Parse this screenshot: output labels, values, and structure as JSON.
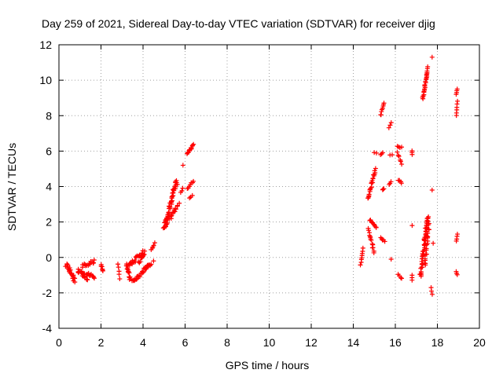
{
  "chart_data": {
    "type": "scatter",
    "title": "Day 259 of 2021, Sidereal Day-to-day VTEC variation (SDTVAR) for receiver djig",
    "xlabel": "GPS time / hours",
    "ylabel": "SDTVAR / TECUs",
    "xlim": [
      0,
      20
    ],
    "ylim": [
      -4,
      12
    ],
    "x_ticks": [
      0,
      2,
      4,
      6,
      8,
      10,
      12,
      14,
      16,
      18,
      20
    ],
    "y_ticks": [
      -4,
      -2,
      0,
      2,
      4,
      6,
      8,
      10,
      12
    ],
    "grid": true,
    "marker": "+",
    "color": "#ff0000",
    "series": [
      {
        "name": "SDTVAR",
        "segments": [
          {
            "x0": 0.35,
            "y0": -0.4,
            "x1": 0.75,
            "y1": -1.3,
            "n": 24,
            "jitter": 0.25
          },
          {
            "x0": 0.9,
            "y0": -0.7,
            "x1": 1.35,
            "y1": -1.2,
            "n": 22,
            "jitter": 0.25
          },
          {
            "x0": 1.1,
            "y0": -0.5,
            "x1": 1.7,
            "y1": -0.2,
            "n": 14,
            "jitter": 0.2
          },
          {
            "x0": 1.3,
            "y0": -0.9,
            "x1": 1.7,
            "y1": -1.1,
            "n": 10,
            "jitter": 0.15
          },
          {
            "x0": 2.0,
            "y0": -0.4,
            "x1": 2.1,
            "y1": -0.8,
            "n": 6,
            "jitter": 0.1
          },
          {
            "x0": 2.8,
            "y0": -0.4,
            "x1": 2.9,
            "y1": -1.2,
            "n": 5,
            "jitter": 0.1
          },
          {
            "x0": 3.2,
            "y0": -0.4,
            "x1": 3.4,
            "y1": -1.3,
            "n": 14,
            "jitter": 0.2
          },
          {
            "x0": 3.3,
            "y0": -0.5,
            "x1": 4.0,
            "y1": 0.3,
            "n": 26,
            "jitter": 0.2
          },
          {
            "x0": 3.5,
            "y0": -1.4,
            "x1": 4.3,
            "y1": -0.4,
            "n": 28,
            "jitter": 0.2
          },
          {
            "x0": 3.8,
            "y0": -0.3,
            "x1": 4.1,
            "y1": 0.3,
            "n": 10,
            "jitter": 0.15
          },
          {
            "x0": 4.1,
            "y0": -0.6,
            "x1": 4.4,
            "y1": -0.4,
            "n": 6,
            "jitter": 0.15
          },
          {
            "x0": 4.4,
            "y0": 0.4,
            "x1": 4.55,
            "y1": 0.8,
            "n": 5,
            "jitter": 0.1
          },
          {
            "x0": 4.5,
            "y0": -0.2,
            "x1": 4.55,
            "y1": -0.2,
            "n": 1,
            "jitter": 0
          },
          {
            "x0": 5.0,
            "y0": 1.6,
            "x1": 5.6,
            "y1": 4.3,
            "n": 55,
            "jitter": 0.3
          },
          {
            "x0": 5.1,
            "y0": 1.9,
            "x1": 5.7,
            "y1": 3.0,
            "n": 18,
            "jitter": 0.2
          },
          {
            "x0": 5.8,
            "y0": 3.7,
            "x1": 5.9,
            "y1": 3.9,
            "n": 3,
            "jitter": 0.1
          },
          {
            "x0": 5.9,
            "y0": 5.2,
            "x1": 5.9,
            "y1": 5.2,
            "n": 1,
            "jitter": 0
          },
          {
            "x0": 6.1,
            "y0": 3.9,
            "x1": 6.4,
            "y1": 4.3,
            "n": 7,
            "jitter": 0.1
          },
          {
            "x0": 6.1,
            "y0": 5.8,
            "x1": 6.4,
            "y1": 6.4,
            "n": 12,
            "jitter": 0.15
          },
          {
            "x0": 6.2,
            "y0": 3.4,
            "x1": 6.35,
            "y1": 3.5,
            "n": 3,
            "jitter": 0.1
          },
          {
            "x0": 14.35,
            "y0": -0.4,
            "x1": 14.45,
            "y1": 0.5,
            "n": 8,
            "jitter": 0.1
          },
          {
            "x0": 14.7,
            "y0": 3.3,
            "x1": 15.05,
            "y1": 5.0,
            "n": 22,
            "jitter": 0.15
          },
          {
            "x0": 14.7,
            "y0": 1.6,
            "x1": 15.0,
            "y1": 0.3,
            "n": 14,
            "jitter": 0.15
          },
          {
            "x0": 14.8,
            "y0": 2.1,
            "x1": 15.1,
            "y1": 1.7,
            "n": 10,
            "jitter": 0.12
          },
          {
            "x0": 15.0,
            "y0": 5.9,
            "x1": 15.1,
            "y1": 5.9,
            "n": 2,
            "jitter": 0.05
          },
          {
            "x0": 15.3,
            "y0": 8.0,
            "x1": 15.45,
            "y1": 8.7,
            "n": 8,
            "jitter": 0.1
          },
          {
            "x0": 15.3,
            "y0": 5.8,
            "x1": 15.4,
            "y1": 5.9,
            "n": 3,
            "jitter": 0.05
          },
          {
            "x0": 15.4,
            "y0": 3.8,
            "x1": 15.45,
            "y1": 3.9,
            "n": 3,
            "jitter": 0.05
          },
          {
            "x0": 15.3,
            "y0": 1.1,
            "x1": 15.5,
            "y1": 0.9,
            "n": 5,
            "jitter": 0.1
          },
          {
            "x0": 15.7,
            "y0": 7.3,
            "x1": 15.8,
            "y1": 7.6,
            "n": 3,
            "jitter": 0.05
          },
          {
            "x0": 15.7,
            "y0": 4.1,
            "x1": 15.8,
            "y1": 4.3,
            "n": 3,
            "jitter": 0.05
          },
          {
            "x0": 15.75,
            "y0": 5.8,
            "x1": 15.85,
            "y1": 5.8,
            "n": 2,
            "jitter": 0.05
          },
          {
            "x0": 15.8,
            "y0": -0.1,
            "x1": 15.8,
            "y1": -0.1,
            "n": 1,
            "jitter": 0
          },
          {
            "x0": 16.1,
            "y0": 6.3,
            "x1": 16.3,
            "y1": 6.2,
            "n": 4,
            "jitter": 0.1
          },
          {
            "x0": 16.1,
            "y0": 5.9,
            "x1": 16.3,
            "y1": 5.3,
            "n": 6,
            "jitter": 0.1
          },
          {
            "x0": 16.15,
            "y0": 4.4,
            "x1": 16.3,
            "y1": 4.2,
            "n": 4,
            "jitter": 0.1
          },
          {
            "x0": 16.15,
            "y0": -1.0,
            "x1": 16.3,
            "y1": -1.2,
            "n": 4,
            "jitter": 0.1
          },
          {
            "x0": 16.8,
            "y0": 5.8,
            "x1": 16.8,
            "y1": 6.0,
            "n": 3,
            "jitter": 0.05
          },
          {
            "x0": 16.8,
            "y0": 1.8,
            "x1": 16.8,
            "y1": 1.8,
            "n": 1,
            "jitter": 0
          },
          {
            "x0": 16.8,
            "y0": -1.0,
            "x1": 16.8,
            "y1": -1.3,
            "n": 3,
            "jitter": 0.05
          },
          {
            "x0": 17.3,
            "y0": 8.9,
            "x1": 17.55,
            "y1": 10.7,
            "n": 24,
            "jitter": 0.12
          },
          {
            "x0": 17.2,
            "y0": -1.0,
            "x1": 17.55,
            "y1": 2.3,
            "n": 60,
            "jitter": 0.3
          },
          {
            "x0": 17.4,
            "y0": -0.5,
            "x1": 17.6,
            "y1": 1.9,
            "n": 20,
            "jitter": 0.2
          },
          {
            "x0": 17.75,
            "y0": 3.8,
            "x1": 17.75,
            "y1": 3.8,
            "n": 1,
            "jitter": 0
          },
          {
            "x0": 17.75,
            "y0": 11.3,
            "x1": 17.75,
            "y1": 11.3,
            "n": 1,
            "jitter": 0
          },
          {
            "x0": 17.7,
            "y0": -1.7,
            "x1": 17.75,
            "y1": -2.1,
            "n": 3,
            "jitter": 0.05
          },
          {
            "x0": 17.8,
            "y0": 0.8,
            "x1": 17.8,
            "y1": 0.8,
            "n": 1,
            "jitter": 0
          },
          {
            "x0": 18.9,
            "y0": 9.2,
            "x1": 18.95,
            "y1": 9.5,
            "n": 4,
            "jitter": 0.05
          },
          {
            "x0": 18.9,
            "y0": 8.0,
            "x1": 18.95,
            "y1": 8.8,
            "n": 6,
            "jitter": 0.05
          },
          {
            "x0": 18.9,
            "y0": 0.9,
            "x1": 18.95,
            "y1": 1.3,
            "n": 4,
            "jitter": 0.05
          },
          {
            "x0": 18.9,
            "y0": -0.8,
            "x1": 18.95,
            "y1": -1.0,
            "n": 3,
            "jitter": 0.05
          }
        ]
      }
    ]
  }
}
